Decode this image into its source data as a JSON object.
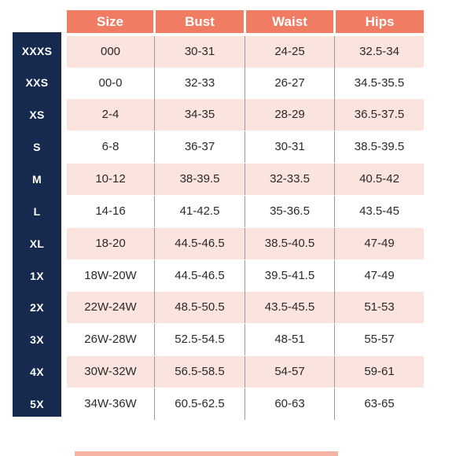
{
  "header": {
    "size": "Size",
    "bust": "Bust",
    "waist": "Waist",
    "hips": "Hips"
  },
  "rows": [
    {
      "label": "XXXS",
      "size": "000",
      "bust": "30-31",
      "waist": "24-25",
      "hips": "32.5-34"
    },
    {
      "label": "XXS",
      "size": "00-0",
      "bust": "32-33",
      "waist": "26-27",
      "hips": "34.5-35.5"
    },
    {
      "label": "XS",
      "size": "2-4",
      "bust": "34-35",
      "waist": "28-29",
      "hips": "36.5-37.5"
    },
    {
      "label": "S",
      "size": "6-8",
      "bust": "36-37",
      "waist": "30-31",
      "hips": "38.5-39.5"
    },
    {
      "label": "M",
      "size": "10-12",
      "bust": "38-39.5",
      "waist": "32-33.5",
      "hips": "40.5-42"
    },
    {
      "label": "L",
      "size": "14-16",
      "bust": "41-42.5",
      "waist": "35-36.5",
      "hips": "43.5-45"
    },
    {
      "label": "XL",
      "size": "18-20",
      "bust": "44.5-46.5",
      "waist": "38.5-40.5",
      "hips": "47-49"
    },
    {
      "label": "1X",
      "size": "18W-20W",
      "bust": "44.5-46.5",
      "waist": "39.5-41.5",
      "hips": "47-49"
    },
    {
      "label": "2X",
      "size": "22W-24W",
      "bust": "48.5-50.5",
      "waist": "43.5-45.5",
      "hips": "51-53"
    },
    {
      "label": "3X",
      "size": "26W-28W",
      "bust": "52.5-54.5",
      "waist": "48-51",
      "hips": "55-57"
    },
    {
      "label": "4X",
      "size": "30W-32W",
      "bust": "56.5-58.5",
      "waist": "54-57",
      "hips": "59-61"
    },
    {
      "label": "5X",
      "size": "34W-36W",
      "bust": "60.5-62.5",
      "waist": "60-63",
      "hips": "63-65"
    }
  ],
  "colors": {
    "header": "#f07c63",
    "size_column": "#162a4f",
    "row_shade": "#fbe3de"
  }
}
